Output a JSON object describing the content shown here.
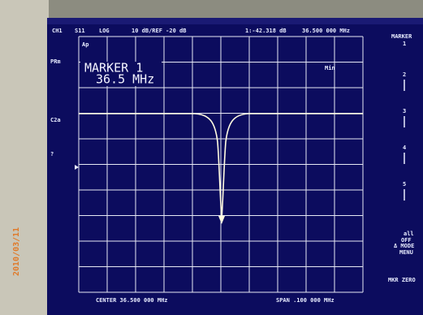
{
  "header": {
    "channel": "CH1",
    "parameter": "S11",
    "format": "LOG",
    "scale": "10 dB/REF -20 dB",
    "marker_value": "1:-42.318 dB",
    "marker_freq": "36.500 000 MHz"
  },
  "left_labels": [
    "PRm",
    "C2a",
    "?"
  ],
  "grid_label": "Ap",
  "marker_box": {
    "title": "MARKER 1",
    "freq": "36.5 MHz"
  },
  "search_label": "Min",
  "softkeys": {
    "title": "MARKER",
    "title_num": "1",
    "keys": [
      "2",
      "3",
      "4",
      "5"
    ],
    "all_off": [
      "all",
      "OFF"
    ],
    "mode_menu": [
      "Δ MODE",
      "MENU"
    ],
    "zero": "MKR ZERO"
  },
  "footer": {
    "center": "CENTER 36.500 000 MHz",
    "span": "SPAN .100 000 MHz"
  },
  "date_stamp": "2010/03/11"
}
